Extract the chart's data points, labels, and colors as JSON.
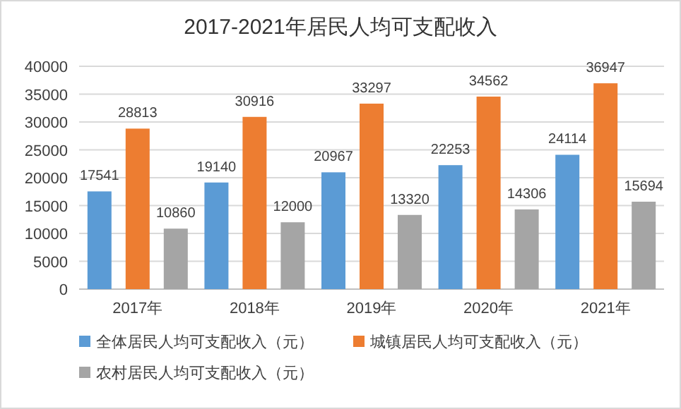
{
  "chart_data": {
    "type": "bar",
    "title": "2017-2021年居民人均可支配收入",
    "categories": [
      "2017年",
      "2018年",
      "2019年",
      "2020年",
      "2021年"
    ],
    "series": [
      {
        "name": "全体居民人均可支配收入（元）",
        "color": "#5b9bd5",
        "values": [
          17541,
          19140,
          20967,
          22253,
          24114
        ]
      },
      {
        "name": "城镇居民人均可支配收入（元）",
        "color": "#ed7d31",
        "values": [
          28813,
          30916,
          33297,
          34562,
          36947
        ]
      },
      {
        "name": "农村居民人均可支配收入（元）",
        "color": "#a5a5a5",
        "values": [
          10860,
          12000,
          13320,
          14306,
          15694
        ]
      }
    ],
    "ylim": [
      0,
      40000
    ],
    "yticks": [
      0,
      5000,
      10000,
      15000,
      20000,
      25000,
      30000,
      35000,
      40000
    ],
    "grid": "y",
    "legend": "bottom",
    "data_labels": true
  }
}
